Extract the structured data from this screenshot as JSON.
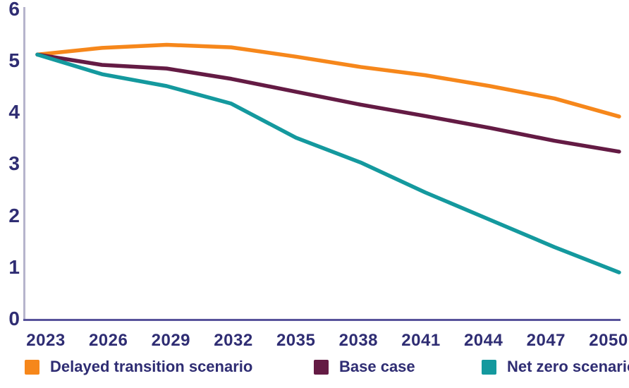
{
  "chart_data": {
    "type": "line",
    "title": "",
    "xlabel": "",
    "ylabel": "",
    "x": [
      2023,
      2026,
      2029,
      2032,
      2035,
      2038,
      2041,
      2044,
      2047,
      2050
    ],
    "x_tick_labels": [
      "2023",
      "2026",
      "2029",
      "2032",
      "2035",
      "2038",
      "2041",
      "2044",
      "2047",
      "2050"
    ],
    "y_ticks": [
      0,
      1,
      2,
      3,
      4,
      5,
      6
    ],
    "ylim": [
      0,
      6
    ],
    "grid": false,
    "legend_position": "bottom",
    "series": [
      {
        "name": "Delayed transition scenario",
        "color": "#F6871B",
        "values": [
          5.12,
          5.25,
          5.31,
          5.26,
          5.08,
          4.88,
          4.72,
          4.51,
          4.27,
          3.92
        ]
      },
      {
        "name": "Base case",
        "color": "#641B44",
        "values": [
          5.12,
          4.92,
          4.85,
          4.65,
          4.4,
          4.15,
          3.93,
          3.7,
          3.45,
          3.24
        ]
      },
      {
        "name": "Net zero scenario",
        "color": "#14999E",
        "values": [
          5.12,
          4.74,
          4.51,
          4.17,
          3.51,
          3.03,
          2.45,
          1.92,
          1.39,
          0.9
        ]
      }
    ]
  },
  "legend": {
    "items": [
      {
        "label": "Delayed transition scenario",
        "color": "#F6871B"
      },
      {
        "label": "Base case",
        "color": "#641B44"
      },
      {
        "label": "Net zero scenario",
        "color": "#14999E"
      }
    ]
  },
  "colors": {
    "text": "#2F2D73",
    "axis_vertical": "#B6B4CC",
    "axis_horizontal": "#57539B",
    "background": "#FFFFFF"
  }
}
